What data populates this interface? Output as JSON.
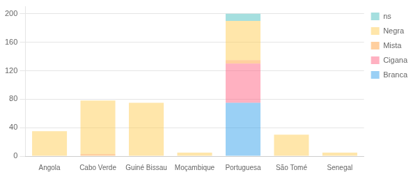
{
  "chart_data": {
    "type": "bar",
    "stacked": true,
    "categories": [
      "Angola",
      "Cabo Verde",
      "Guiné Bissau",
      "Moçambique",
      "Portuguesa",
      "São Tomé",
      "Senegal"
    ],
    "series": [
      {
        "name": "Branca",
        "values": [
          0,
          0,
          0,
          0,
          75,
          0,
          0
        ]
      },
      {
        "name": "Cigana",
        "values": [
          0,
          0,
          0,
          0,
          55,
          0,
          0
        ]
      },
      {
        "name": "Mista",
        "values": [
          0,
          3,
          0,
          0,
          5,
          0,
          0
        ]
      },
      {
        "name": "Negra",
        "values": [
          35,
          75,
          75,
          5,
          55,
          30,
          5
        ]
      },
      {
        "name": "ns",
        "values": [
          0,
          0,
          0,
          0,
          10,
          0,
          0
        ]
      }
    ],
    "ylim": [
      0,
      210
    ],
    "yticks": [
      0,
      40,
      80,
      120,
      160,
      200
    ],
    "grid": true,
    "legend": "upper right"
  }
}
